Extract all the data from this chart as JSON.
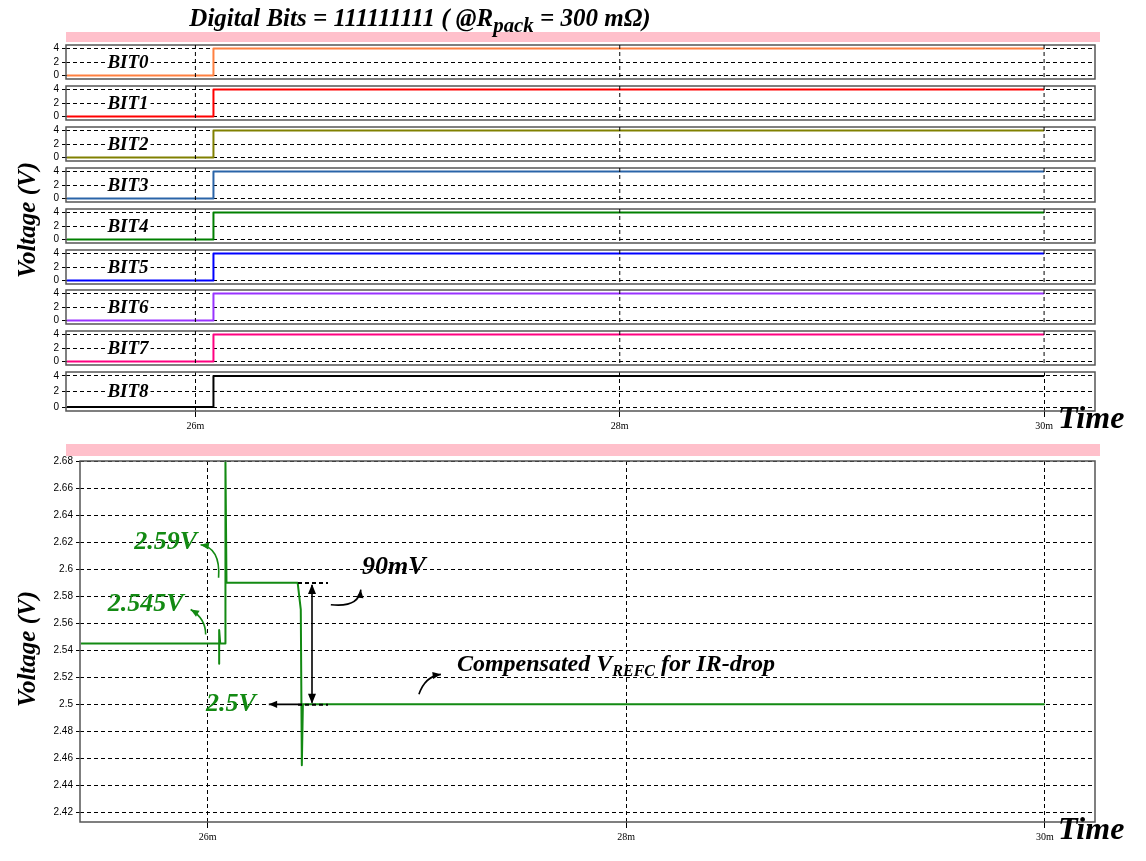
{
  "chart_data": [
    {
      "type": "step",
      "title": "Digital Bits = 111111111 ( @R$_{pack}$ = 300 mΩ)",
      "x": [
        25.394,
        26.085,
        30.0
      ],
      "series": [
        {
          "name": "BIT0",
          "color": "#ff8040",
          "values": [
            0,
            4,
            4
          ]
        }
      ],
      "xlim": [
        25.39,
        30.24
      ],
      "xticks": [
        {
          "value": 26,
          "label": null
        },
        {
          "value": 28,
          "label": null
        },
        {
          "value": 30,
          "label": null
        }
      ],
      "ylim": [
        -0.5,
        4.5
      ],
      "yticks": [
        0,
        2,
        4
      ],
      "grid": true,
      "tick_labels": "y"
    },
    {
      "type": "step",
      "x": [
        25.394,
        26.085,
        30.0
      ],
      "series": [
        {
          "name": "BIT1",
          "color": "#ff0000",
          "values": [
            0,
            4,
            4
          ]
        }
      ],
      "xlim": [
        25.39,
        30.24
      ],
      "xticks": [
        {
          "value": 26,
          "label": null
        },
        {
          "value": 28,
          "label": null
        },
        {
          "value": 30,
          "label": null
        }
      ],
      "ylim": [
        -0.5,
        4.5
      ],
      "yticks": [
        0,
        2,
        4
      ],
      "grid": true,
      "tick_labels": "y"
    },
    {
      "type": "step",
      "x": [
        25.394,
        26.085,
        30.0
      ],
      "series": [
        {
          "name": "BIT2",
          "color": "#808000",
          "values": [
            0,
            4,
            4
          ]
        }
      ],
      "xlim": [
        25.39,
        30.24
      ],
      "xticks": [
        {
          "value": 26,
          "label": null
        },
        {
          "value": 28,
          "label": null
        },
        {
          "value": 30,
          "label": null
        }
      ],
      "ylim": [
        -0.5,
        4.5
      ],
      "yticks": [
        0,
        2,
        4
      ],
      "grid": true,
      "tick_labels": "y"
    },
    {
      "type": "step",
      "x": [
        25.394,
        26.085,
        30.0
      ],
      "series": [
        {
          "name": "BIT3",
          "color": "#2a64a8",
          "values": [
            0,
            4,
            4
          ]
        }
      ],
      "xlim": [
        25.39,
        30.24
      ],
      "xticks": [
        {
          "value": 26,
          "label": null
        },
        {
          "value": 28,
          "label": null
        },
        {
          "value": 30,
          "label": null
        }
      ],
      "ylim": [
        -0.5,
        4.5
      ],
      "yticks": [
        0,
        2,
        4
      ],
      "grid": true,
      "tick_labels": "y"
    },
    {
      "type": "step",
      "ylabel": "Voltage (V)",
      "x": [
        25.394,
        26.085,
        30.0
      ],
      "series": [
        {
          "name": "BIT4",
          "color": "#008000",
          "values": [
            0,
            4,
            4
          ]
        }
      ],
      "xlim": [
        25.39,
        30.24
      ],
      "xticks": [
        {
          "value": 26,
          "label": null
        },
        {
          "value": 28,
          "label": null
        },
        {
          "value": 30,
          "label": null
        }
      ],
      "ylim": [
        -0.5,
        4.5
      ],
      "yticks": [
        0,
        2,
        4
      ],
      "grid": true,
      "tick_labels": "y"
    },
    {
      "type": "step",
      "x": [
        25.394,
        26.085,
        30.0
      ],
      "series": [
        {
          "name": "BIT5",
          "color": "#0000ff",
          "values": [
            0,
            4,
            4
          ]
        }
      ],
      "xlim": [
        25.39,
        30.24
      ],
      "xticks": [
        {
          "value": 26,
          "label": null
        },
        {
          "value": 28,
          "label": null
        },
        {
          "value": 30,
          "label": null
        }
      ],
      "ylim": [
        -0.5,
        4.5
      ],
      "yticks": [
        0,
        2,
        4
      ],
      "grid": true,
      "tick_labels": "y"
    },
    {
      "type": "step",
      "x": [
        25.394,
        26.085,
        30.0
      ],
      "series": [
        {
          "name": "BIT6",
          "color": "#9933ff",
          "values": [
            0,
            4,
            4
          ]
        }
      ],
      "xlim": [
        25.39,
        30.24
      ],
      "xticks": [
        {
          "value": 26,
          "label": null
        },
        {
          "value": 28,
          "label": null
        },
        {
          "value": 30,
          "label": null
        }
      ],
      "ylim": [
        -0.5,
        4.5
      ],
      "yticks": [
        0,
        2,
        4
      ],
      "grid": true,
      "tick_labels": "y"
    },
    {
      "type": "step",
      "x": [
        25.394,
        26.085,
        30.0
      ],
      "series": [
        {
          "name": "BIT7",
          "color": "#ff0080",
          "values": [
            0,
            4,
            4
          ]
        }
      ],
      "xlim": [
        25.39,
        30.24
      ],
      "xticks": [
        {
          "value": 26,
          "label": null
        },
        {
          "value": 28,
          "label": null
        },
        {
          "value": 30,
          "label": null
        }
      ],
      "ylim": [
        -0.5,
        4.5
      ],
      "yticks": [
        0,
        2,
        4
      ],
      "grid": true,
      "tick_labels": "y"
    },
    {
      "type": "step",
      "xlabel": "Time",
      "x": [
        25.394,
        26.085,
        30.0
      ],
      "series": [
        {
          "name": "BIT8",
          "color": "#000000",
          "values": [
            0,
            4,
            4
          ]
        }
      ],
      "xlim": [
        25.39,
        30.24
      ],
      "xticks": [
        {
          "value": 26,
          "label": "26m"
        },
        {
          "value": 28,
          "label": "28m"
        },
        {
          "value": 30,
          "label": "30m"
        }
      ],
      "ylim": [
        -0.5,
        4.5
      ],
      "yticks": [
        0,
        2,
        4
      ],
      "grid": true
    },
    {
      "type": "line",
      "xlabel": "Time",
      "ylabel": "Voltage (V)",
      "x": [
        25.394,
        26.055,
        26.055,
        26.055,
        26.06,
        26.085,
        26.085,
        26.09,
        26.43,
        26.445,
        26.45,
        26.455,
        30.0
      ],
      "series": [
        {
          "color": "#138a13",
          "values": [
            2.545,
            2.545,
            2.53,
            2.555,
            2.545,
            2.545,
            2.68,
            2.59,
            2.59,
            2.57,
            2.455,
            2.5,
            2.5
          ]
        }
      ],
      "xlim": [
        25.39,
        30.24
      ],
      "xticks": [
        {
          "value": 26,
          "label": "26m"
        },
        {
          "value": 28,
          "label": "28m"
        },
        {
          "value": 30,
          "label": "30m"
        }
      ],
      "ylim": [
        2.413,
        2.68
      ],
      "yticks": [
        2.42,
        2.44,
        2.46,
        2.48,
        2.5,
        2.52,
        2.54,
        2.56,
        2.58,
        2.6,
        2.62,
        2.64,
        2.66,
        2.68
      ],
      "grid": true,
      "annotations": [
        {
          "text": "2.59V",
          "x": 26.1,
          "y": 2.59
        },
        {
          "text": "2.545V",
          "x": 26.0,
          "y": 2.545
        },
        {
          "text": "2.5V",
          "x": 26.45,
          "y": 2.5
        },
        "90mV",
        {
          "text": "Compensated V$_{REFC}$ for IR-drop",
          "x": 27.0,
          "y": 2.5
        }
      ]
    }
  ]
}
